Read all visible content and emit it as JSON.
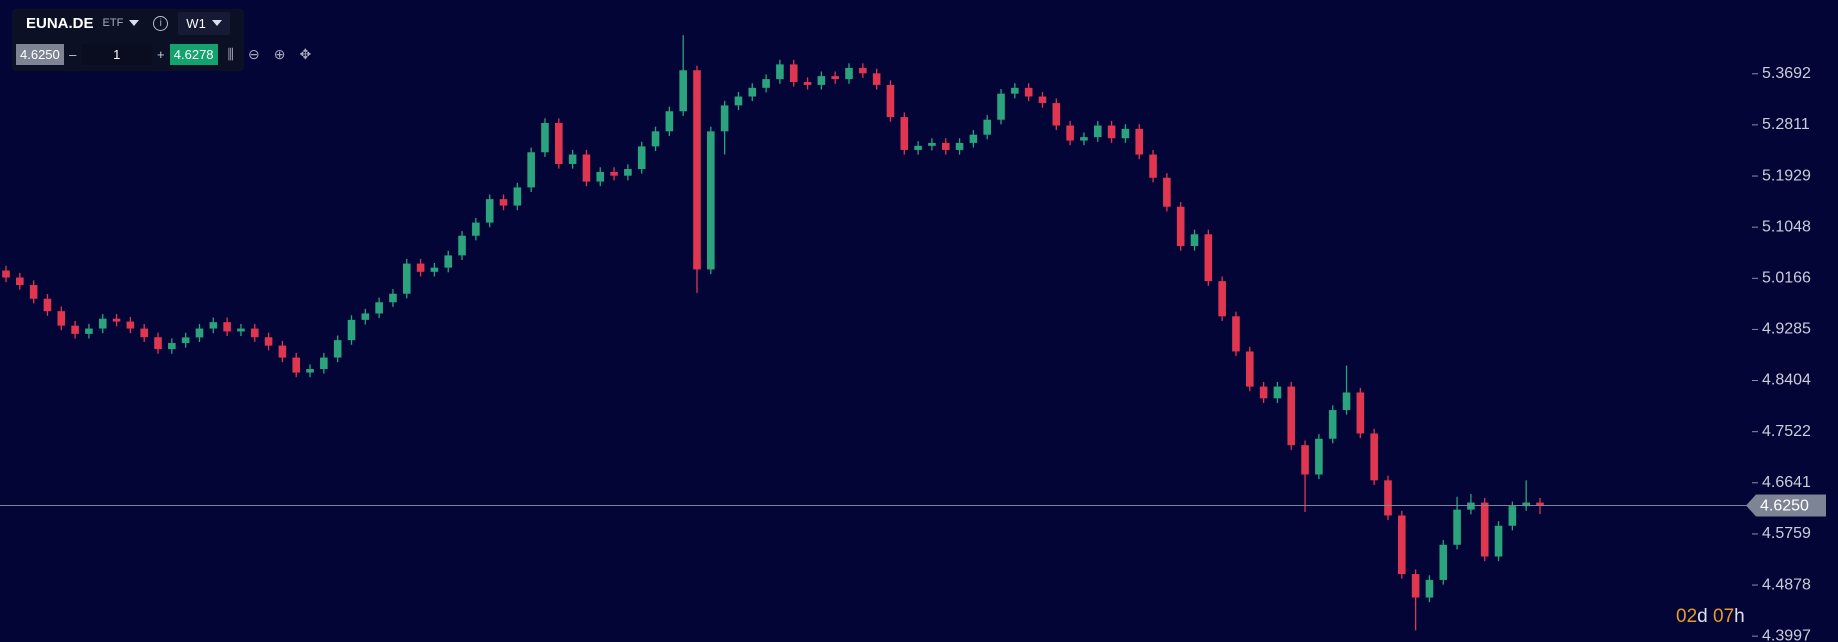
{
  "toolbar": {
    "symbol": "EUNA.DE",
    "asset_type": "ETF",
    "timeframe": "W1",
    "bid": "4.6250",
    "minus": "–",
    "quantity": "1",
    "plus": "+",
    "ask": "4.6278"
  },
  "timer": {
    "days": "02",
    "days_unit": "d",
    "hours": "07",
    "hours_unit": "h"
  },
  "chart_data": {
    "type": "candlestick",
    "colors": {
      "up": "#2ba37c",
      "down": "#e0364f",
      "background": "#020535",
      "current_line": "#7d8494"
    },
    "ylim": [
      4.3896,
      5.4964
    ],
    "yticks": [
      5.3692,
      5.2811,
      5.1929,
      5.1048,
      5.0166,
      4.9285,
      4.8404,
      4.7522,
      4.6641,
      4.5759,
      4.4878,
      4.3997
    ],
    "current_price": {
      "value": 4.625,
      "label": "4.6250"
    },
    "candles": [
      [
        5.03,
        5.038,
        5.01,
        5.018
      ],
      [
        5.018,
        5.026,
        4.997,
        5.005
      ],
      [
        5.005,
        5.013,
        4.9734,
        4.9814
      ],
      [
        4.9814,
        4.9894,
        4.952,
        4.96
      ],
      [
        4.96,
        4.968,
        4.927,
        4.935
      ],
      [
        4.935,
        4.943,
        4.9128,
        4.9208
      ],
      [
        4.9208,
        4.938,
        4.9128,
        4.93
      ],
      [
        4.93,
        4.955,
        4.922,
        4.947
      ],
      [
        4.947,
        4.955,
        4.934,
        4.942
      ],
      [
        4.942,
        4.95,
        4.922,
        4.93
      ],
      [
        4.93,
        4.938,
        4.907,
        4.915
      ],
      [
        4.915,
        4.923,
        4.8865,
        4.8945
      ],
      [
        4.8945,
        4.913,
        4.8865,
        4.905
      ],
      [
        4.905,
        4.9227,
        4.897,
        4.9147
      ],
      [
        4.9147,
        4.938,
        4.9067,
        4.93
      ],
      [
        4.93,
        4.949,
        4.922,
        4.941
      ],
      [
        4.941,
        4.949,
        4.917,
        4.925
      ],
      [
        4.925,
        4.938,
        4.917,
        4.93
      ],
      [
        4.93,
        4.938,
        4.907,
        4.915
      ],
      [
        4.915,
        4.923,
        4.8926,
        4.9006
      ],
      [
        4.9006,
        4.9086,
        4.872,
        4.88
      ],
      [
        4.88,
        4.888,
        4.8461,
        4.8541
      ],
      [
        4.8541,
        4.8682,
        4.8461,
        4.8602
      ],
      [
        4.8602,
        4.888,
        4.8522,
        4.88
      ],
      [
        4.88,
        4.918,
        4.872,
        4.91
      ],
      [
        4.91,
        4.953,
        4.902,
        4.945
      ],
      [
        4.945,
        4.964,
        4.937,
        4.956
      ],
      [
        4.956,
        4.9833,
        4.948,
        4.9753
      ],
      [
        4.9753,
        4.998,
        4.9673,
        4.99
      ],
      [
        4.99,
        5.05,
        4.982,
        5.042
      ],
      [
        5.042,
        5.05,
        5.0198,
        5.0278
      ],
      [
        5.0278,
        5.043,
        5.0198,
        5.035
      ],
      [
        5.035,
        5.0641,
        5.027,
        5.0561
      ],
      [
        5.0561,
        5.098,
        5.0481,
        5.09
      ],
      [
        5.09,
        5.1207,
        5.082,
        5.1127
      ],
      [
        5.1127,
        5.1611,
        5.1047,
        5.1531
      ],
      [
        5.1531,
        5.1611,
        5.134,
        5.142
      ],
      [
        5.142,
        5.1813,
        5.134,
        5.1733
      ],
      [
        5.1733,
        5.2419,
        5.1653,
        5.2339
      ],
      [
        5.2339,
        5.2924,
        5.2259,
        5.2844
      ],
      [
        5.2844,
        5.2924,
        5.2057,
        5.2137
      ],
      [
        5.2137,
        5.238,
        5.2057,
        5.23
      ],
      [
        5.23,
        5.238,
        5.1754,
        5.1834
      ],
      [
        5.1834,
        5.208,
        5.1754,
        5.2
      ],
      [
        5.2,
        5.208,
        5.1855,
        5.1935
      ],
      [
        5.1935,
        5.213,
        5.1855,
        5.205
      ],
      [
        5.205,
        5.252,
        5.197,
        5.244
      ],
      [
        5.244,
        5.278,
        5.236,
        5.27
      ],
      [
        5.27,
        5.3126,
        5.262,
        5.3046
      ],
      [
        5.3046,
        5.4358,
        5.2966,
        5.3753
      ],
      [
        5.3753,
        5.3833,
        4.9915,
        5.0319
      ],
      [
        5.0319,
        5.278,
        5.0239,
        5.27
      ],
      [
        5.27,
        5.3227,
        5.23,
        5.3147
      ],
      [
        5.3147,
        5.338,
        5.3067,
        5.33
      ],
      [
        5.33,
        5.353,
        5.322,
        5.345
      ],
      [
        5.345,
        5.368,
        5.337,
        5.36
      ],
      [
        5.36,
        5.3934,
        5.352,
        5.3854
      ],
      [
        5.3854,
        5.3934,
        5.3471,
        5.3551
      ],
      [
        5.3551,
        5.3631,
        5.342,
        5.35
      ],
      [
        5.35,
        5.3732,
        5.342,
        5.3652
      ],
      [
        5.3652,
        5.3732,
        5.352,
        5.36
      ],
      [
        5.36,
        5.3873,
        5.352,
        5.3793
      ],
      [
        5.3793,
        5.3873,
        5.362,
        5.37
      ],
      [
        5.37,
        5.378,
        5.342,
        5.35
      ],
      [
        5.35,
        5.358,
        5.2865,
        5.2945
      ],
      [
        5.2945,
        5.3025,
        5.2299,
        5.2379
      ],
      [
        5.2379,
        5.253,
        5.2299,
        5.245
      ],
      [
        5.245,
        5.258,
        5.237,
        5.25
      ],
      [
        5.25,
        5.258,
        5.2299,
        5.2379
      ],
      [
        5.2379,
        5.258,
        5.2299,
        5.25
      ],
      [
        5.25,
        5.2722,
        5.242,
        5.2642
      ],
      [
        5.2642,
        5.298,
        5.2562,
        5.29
      ],
      [
        5.29,
        5.3429,
        5.282,
        5.3349
      ],
      [
        5.3349,
        5.353,
        5.3269,
        5.345
      ],
      [
        5.345,
        5.353,
        5.322,
        5.33
      ],
      [
        5.33,
        5.338,
        5.3107,
        5.3187
      ],
      [
        5.3187,
        5.3267,
        5.272,
        5.28
      ],
      [
        5.28,
        5.288,
        5.2461,
        5.2541
      ],
      [
        5.2541,
        5.268,
        5.2461,
        5.26
      ],
      [
        5.26,
        5.288,
        5.252,
        5.28
      ],
      [
        5.28,
        5.288,
        5.2501,
        5.2581
      ],
      [
        5.2581,
        5.2823,
        5.2501,
        5.2743
      ],
      [
        5.2743,
        5.2823,
        5.222,
        5.23
      ],
      [
        5.23,
        5.238,
        5.182,
        5.19
      ],
      [
        5.19,
        5.198,
        5.132,
        5.14
      ],
      [
        5.14,
        5.148,
        5.0643,
        5.0723
      ],
      [
        5.0723,
        5.1005,
        5.0643,
        5.0925
      ],
      [
        5.0925,
        5.1005,
        5.0037,
        5.0117
      ],
      [
        5.0117,
        5.0197,
        4.9431,
        4.9511
      ],
      [
        4.9511,
        4.9591,
        4.8825,
        4.8905
      ],
      [
        4.8905,
        4.8985,
        4.8219,
        4.8299
      ],
      [
        4.8299,
        4.8379,
        4.8017,
        4.8097
      ],
      [
        4.8097,
        4.838,
        4.8017,
        4.83
      ],
      [
        4.83,
        4.838,
        4.7209,
        4.7289
      ],
      [
        4.7289,
        4.7369,
        4.6137,
        4.6784
      ],
      [
        4.6784,
        4.748,
        4.6704,
        4.74
      ],
      [
        4.74,
        4.7975,
        4.732,
        4.7895
      ],
      [
        4.7895,
        4.8662,
        4.7815,
        4.8198
      ],
      [
        4.8198,
        4.8278,
        4.7411,
        4.7491
      ],
      [
        4.7491,
        4.7571,
        4.6603,
        4.6683
      ],
      [
        4.6683,
        4.6763,
        4.5997,
        4.6077
      ],
      [
        4.6077,
        4.6157,
        4.4987,
        4.5067
      ],
      [
        4.5067,
        4.5147,
        4.4097,
        4.4663
      ],
      [
        4.4663,
        4.5046,
        4.4583,
        4.4966
      ],
      [
        4.4966,
        4.5652,
        4.4886,
        4.5572
      ],
      [
        4.5572,
        4.64,
        4.5492,
        4.6178
      ],
      [
        4.6178,
        4.645,
        4.6098,
        4.63
      ],
      [
        4.63,
        4.638,
        4.529,
        4.537
      ],
      [
        4.537,
        4.598,
        4.529,
        4.59
      ],
      [
        4.59,
        4.6318,
        4.582,
        4.6238
      ],
      [
        4.6238,
        4.6683,
        4.6158,
        4.63
      ],
      [
        4.63,
        4.638,
        4.61,
        4.625
      ]
    ]
  }
}
